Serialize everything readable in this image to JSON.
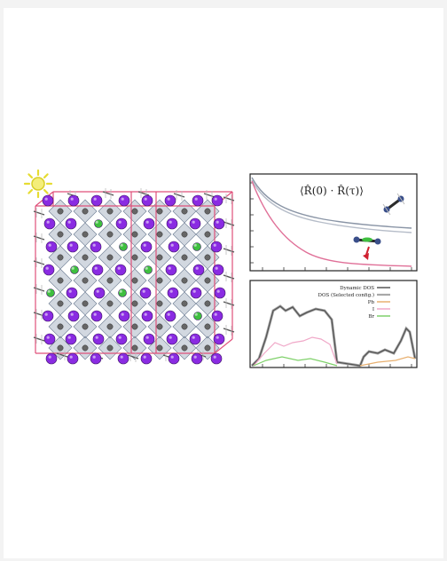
{
  "figure": {
    "correlation_label": "⟨R̂(0) · R̂(τ)⟩",
    "legend": [
      {
        "label": "Dynamic DOS",
        "color": "#555555"
      },
      {
        "label": "DOS (Selected config.)",
        "color": "#a8a8a8"
      },
      {
        "label": "Pb",
        "color": "#e8b070"
      },
      {
        "label": "I",
        "color": "#f0a8c8"
      },
      {
        "label": "Br",
        "color": "#7fd16a"
      }
    ]
  },
  "colors": {
    "iodine": "#8a2be2",
    "bromine": "#3fbf3f",
    "lead": "#666666",
    "cell_edges": "#e0507a",
    "octahedra": "#7f8fa6",
    "sun": "#e6dc32"
  }
}
